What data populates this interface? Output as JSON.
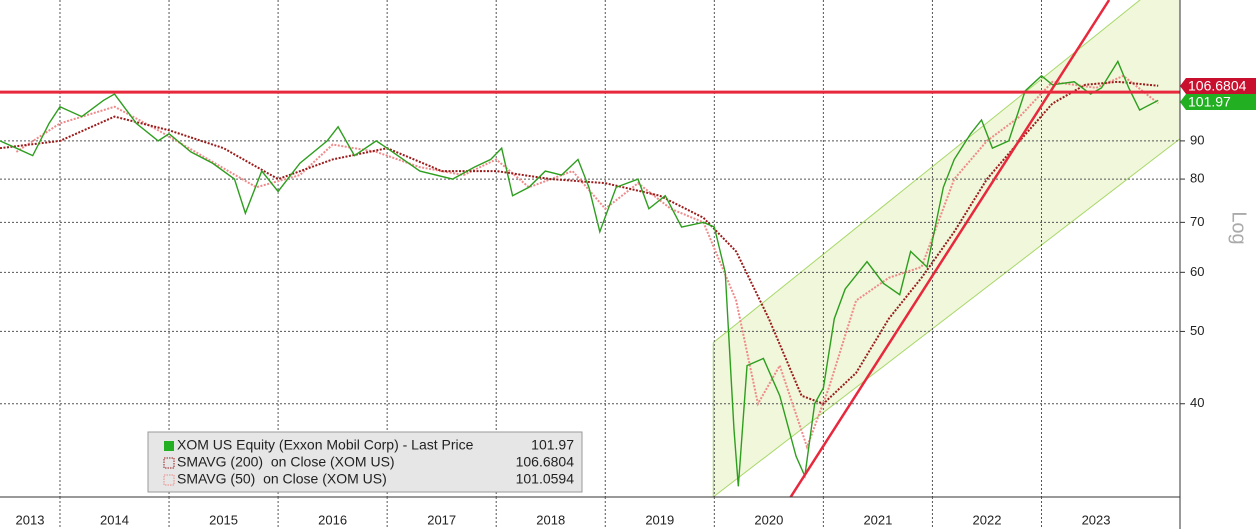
{
  "chart_data": {
    "type": "line",
    "y_scale": "log",
    "y_axis_label": "Log",
    "xlim": [
      2013.45,
      2024.27
    ],
    "xticks": [
      {
        "value": 2013,
        "label": "2013"
      },
      {
        "value": 2014,
        "label": "2014"
      },
      {
        "value": 2015,
        "label": "2015"
      },
      {
        "value": 2016,
        "label": "2016"
      },
      {
        "value": 2017,
        "label": "2017"
      },
      {
        "value": 2018,
        "label": "2018"
      },
      {
        "value": 2019,
        "label": "2019"
      },
      {
        "value": 2020,
        "label": "2020"
      },
      {
        "value": 2021,
        "label": "2021"
      },
      {
        "value": 2022,
        "label": "2022"
      },
      {
        "value": 2023,
        "label": "2023"
      }
    ],
    "ylim": [
      30,
      139
    ],
    "yticks": [
      40,
      50,
      60,
      70,
      80,
      90
    ],
    "grid": true,
    "series": [
      {
        "name": "XOM US Equity (Exxon Mobil Corp) - Last Price",
        "color": "#2e9e1f",
        "tag_color": "#22b022",
        "last_value": 101.97,
        "x": [
          2013.45,
          2013.6,
          2013.75,
          2013.9,
          2014.0,
          2014.2,
          2014.4,
          2014.5,
          2014.7,
          2014.9,
          2015.0,
          2015.2,
          2015.4,
          2015.6,
          2015.7,
          2015.85,
          2016.0,
          2016.2,
          2016.45,
          2016.55,
          2016.7,
          2016.9,
          2017.0,
          2017.3,
          2017.6,
          2017.8,
          2017.95,
          2018.05,
          2018.15,
          2018.3,
          2018.45,
          2018.6,
          2018.75,
          2018.85,
          2018.95,
          2019.1,
          2019.3,
          2019.4,
          2019.55,
          2019.7,
          2019.9,
          2020.0,
          2020.1,
          2020.18,
          2020.22,
          2020.3,
          2020.45,
          2020.6,
          2020.75,
          2020.83,
          2020.92,
          2021.0,
          2021.1,
          2021.2,
          2021.4,
          2021.55,
          2021.7,
          2021.8,
          2021.95,
          2022.1,
          2022.2,
          2022.35,
          2022.45,
          2022.55,
          2022.7,
          2022.85,
          2023.0,
          2023.1,
          2023.3,
          2023.45,
          2023.55,
          2023.7,
          2023.8,
          2023.9,
          2024.07
        ],
        "values": [
          90,
          88,
          86,
          95,
          100,
          97,
          102,
          104,
          95,
          90,
          92,
          87,
          84,
          80,
          72,
          82,
          77,
          84,
          90,
          94,
          86,
          90,
          88,
          82,
          80,
          83,
          85,
          88,
          76,
          78,
          82,
          81,
          85,
          78,
          68,
          78,
          80,
          73,
          76,
          69,
          70,
          69,
          60,
          37,
          31,
          45,
          46,
          41,
          34,
          32,
          40,
          42,
          52,
          57,
          62,
          58,
          56,
          64,
          61,
          78,
          85,
          92,
          96,
          88,
          90,
          105,
          110,
          107,
          108,
          104,
          106,
          115,
          106,
          99,
          101.97
        ]
      },
      {
        "name": "SMAVG (200)  on Close (XOM US)",
        "color": "#9b1b1b",
        "tag_color": "#c8102e",
        "last_value": 106.6804,
        "x": [
          2013.45,
          2014.0,
          2014.5,
          2015.0,
          2015.5,
          2016.0,
          2016.5,
          2017.0,
          2017.5,
          2018.0,
          2018.5,
          2019.0,
          2019.5,
          2019.9,
          2020.2,
          2020.5,
          2020.8,
          2021.0,
          2021.3,
          2021.6,
          2021.9,
          2022.2,
          2022.5,
          2022.8,
          2023.1,
          2023.4,
          2023.7,
          2024.07
        ],
        "values": [
          88,
          90,
          97,
          93,
          88,
          80,
          85,
          88,
          82,
          82,
          80,
          79,
          76,
          71,
          64,
          52,
          41,
          40,
          44,
          52,
          59,
          68,
          80,
          90,
          101,
          107,
          108,
          106.6804
        ]
      },
      {
        "name": "SMAVG (50)  on Close (XOM US)",
        "color": "#f08a8a",
        "last_value": 101.0594,
        "x": [
          2013.6,
          2014.0,
          2014.5,
          2014.9,
          2015.3,
          2015.8,
          2016.2,
          2016.5,
          2016.9,
          2017.3,
          2017.7,
          2018.0,
          2018.3,
          2018.7,
          2019.0,
          2019.3,
          2019.6,
          2019.9,
          2020.2,
          2020.4,
          2020.6,
          2020.85,
          2021.05,
          2021.3,
          2021.6,
          2021.9,
          2022.2,
          2022.5,
          2022.8,
          2023.1,
          2023.5,
          2023.75,
          2024.07
        ],
        "values": [
          87,
          95,
          100,
          93,
          86,
          78,
          81,
          89,
          87,
          83,
          81,
          85,
          78,
          82,
          73,
          79,
          73,
          70,
          55,
          40,
          45,
          35,
          42,
          55,
          59,
          61,
          80,
          90,
          97,
          108,
          106,
          110,
          101.0594
        ]
      }
    ],
    "resistance_level": 104.6,
    "trend_line": {
      "x": [
        2020.7,
        2023.62
      ],
      "values": [
        30,
        139
      ]
    },
    "channel": {
      "x": [
        2019.99,
        2024.27
      ],
      "upper": [
        48.3,
        153.5
      ],
      "lower": [
        30,
        90.6
      ]
    }
  }
}
